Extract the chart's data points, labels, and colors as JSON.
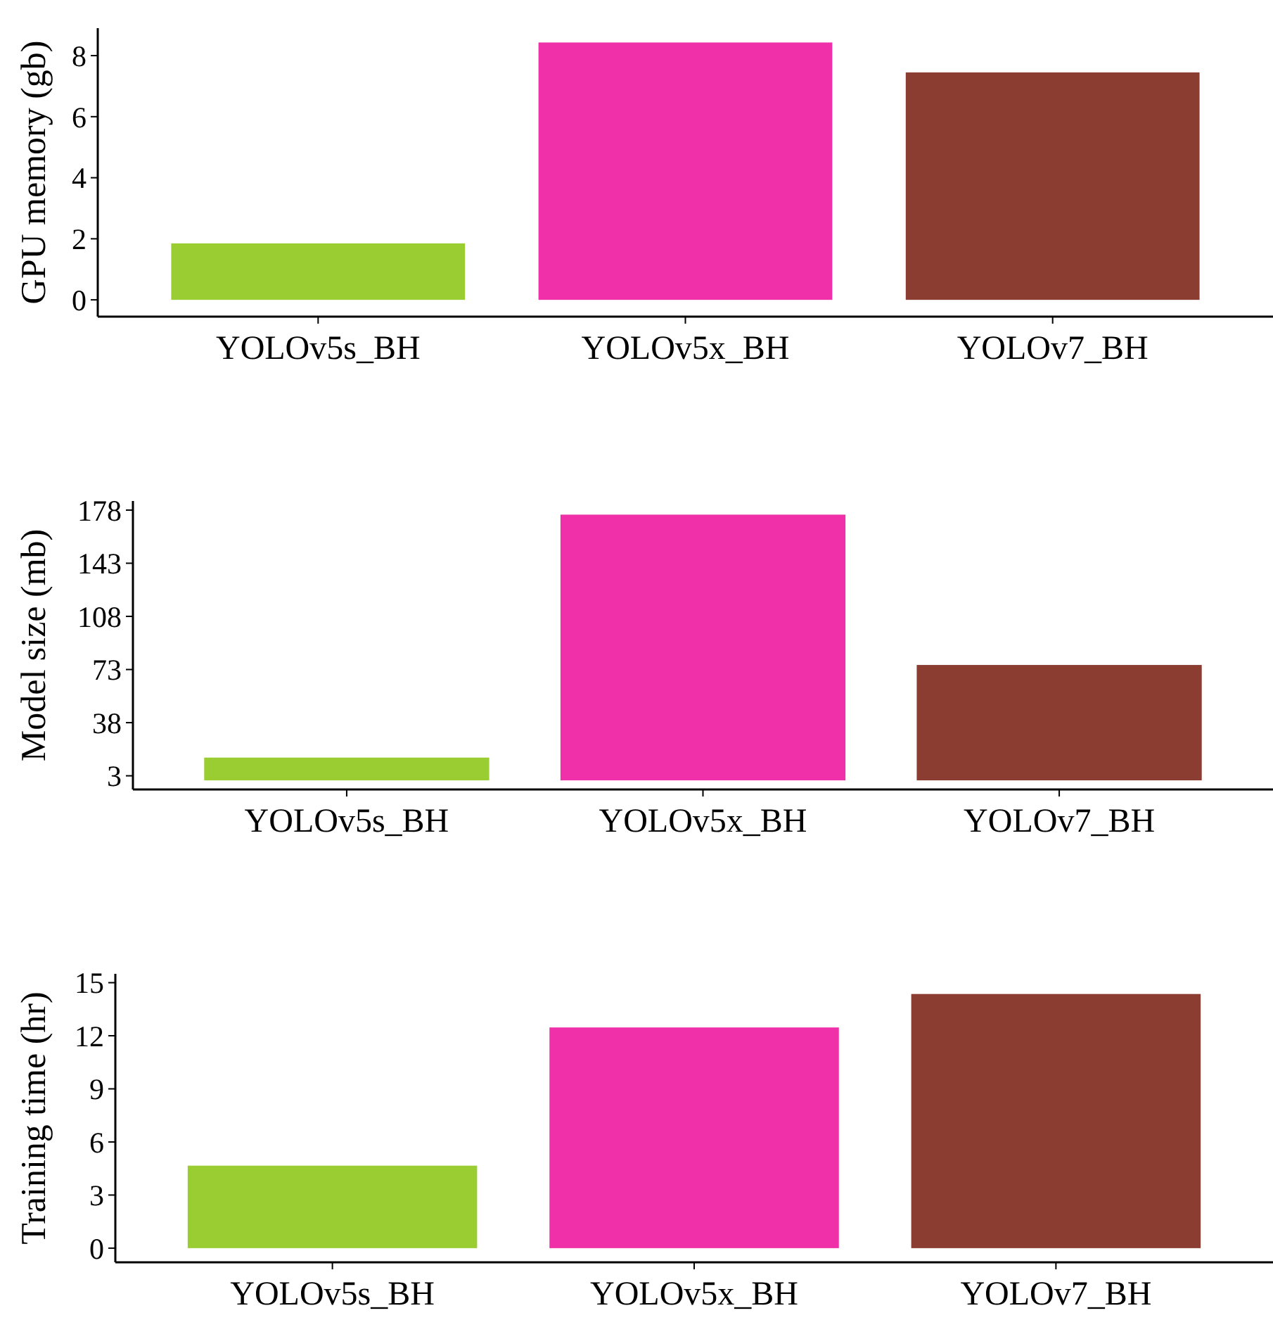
{
  "chart_data": [
    {
      "type": "bar",
      "ylabel": "GPU memory (gb)",
      "categories": [
        "YOLOv5s_BH",
        "YOLOv5x_BH",
        "YOLOv7_BH"
      ],
      "values": [
        1.85,
        8.43,
        7.45
      ],
      "colors": [
        "#9acd32",
        "#f030a8",
        "#8b3d31"
      ],
      "ylim": [
        -0.55,
        8.9
      ],
      "yticks": [
        0,
        2,
        4,
        6,
        8
      ]
    },
    {
      "type": "bar",
      "ylabel": "Model size (mb)",
      "categories": [
        "YOLOv5s_BH",
        "YOLOv5x_BH",
        "YOLOv7_BH"
      ],
      "values": [
        15,
        175,
        76
      ],
      "colors": [
        "#9acd32",
        "#f030a8",
        "#8b3d31"
      ],
      "ylim": [
        -6,
        184
      ],
      "yticks": [
        3,
        38,
        73,
        108,
        143,
        178
      ]
    },
    {
      "type": "bar",
      "ylabel": "Training time (hr)",
      "categories": [
        "YOLOv5s_BH",
        "YOLOv5x_BH",
        "YOLOv7_BH"
      ],
      "values": [
        4.66,
        12.47,
        14.36
      ],
      "colors": [
        "#9acd32",
        "#f030a8",
        "#8b3d31"
      ],
      "ylim": [
        -0.8,
        15.5
      ],
      "yticks": [
        0,
        3,
        6,
        9,
        12,
        15
      ]
    }
  ]
}
